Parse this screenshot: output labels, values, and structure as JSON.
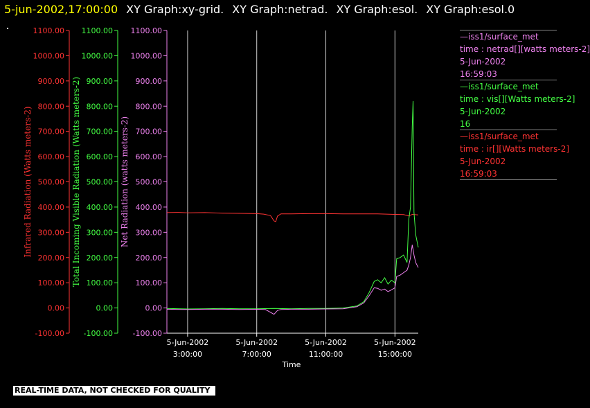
{
  "title": {
    "datetime": "5-jun-2002,17:00:00",
    "graphs": [
      "XY Graph:xy-grid.",
      "XY Graph:netrad.",
      "XY Graph:esol.",
      "XY Graph:esol.0"
    ]
  },
  "legend": [
    {
      "lines": [
        "—iss1/surface_met",
        "time : netrad[][watts meters-2]",
        "5-Jun-2002",
        "16:59:03"
      ],
      "color": "#ee82ee"
    },
    {
      "lines": [
        "—iss1/surface_met",
        "time : vis[][Watts meters-2]",
        "5-Jun-2002",
        "16"
      ],
      "color": "#44ff44"
    },
    {
      "lines": [
        "—iss1/surface_met",
        "time : ir[][Watts meters-2]",
        "5-Jun-2002",
        "16:59:03"
      ],
      "color": "#ff3333"
    }
  ],
  "quality_note": "REAL-TIME DATA, NOT CHECKED FOR QUALITY",
  "chart_data": {
    "type": "line",
    "xlabel": "Time",
    "x_ticks": [
      {
        "t": 3,
        "date": "5-Jun-2002",
        "time": "3:00:00"
      },
      {
        "t": 7,
        "date": "5-Jun-2002",
        "time": "7:00:00"
      },
      {
        "t": 11,
        "date": "5-Jun-2002",
        "time": "11:00:00"
      },
      {
        "t": 15,
        "date": "5-Jun-2002",
        "time": "15:00:00"
      }
    ],
    "xlim": [
      1.8,
      16.35
    ],
    "grid": "vertical lines at x ticks",
    "axes": [
      {
        "id": "ir",
        "label": "Infrared Radiation (Watts meters-2)",
        "color": "#ff3333",
        "ylim": [
          -100,
          1100
        ],
        "ticks": [
          "-100.00",
          "0.00",
          "100.00",
          "200.00",
          "300.00",
          "400.00",
          "500.00",
          "600.00",
          "700.00",
          "800.00",
          "900.00",
          "1000.00",
          "1100.00"
        ]
      },
      {
        "id": "vis",
        "label": "Total Incoming Visible Radiation (Watts meters-2)",
        "color": "#44ff44",
        "ylim": [
          -100,
          1100
        ],
        "ticks": [
          "-100.00",
          "0.00",
          "100.00",
          "200.00",
          "300.00",
          "400.00",
          "500.00",
          "600.00",
          "700.00",
          "800.00",
          "900.00",
          "1000.00",
          "1100.00"
        ]
      },
      {
        "id": "net",
        "label": "Net Radiation (watts meters-2)",
        "color": "#ee82ee",
        "ylim": [
          -100,
          1100
        ],
        "ticks": [
          "-100.00",
          "0.00",
          "100.00",
          "200.00",
          "300.00",
          "400.00",
          "500.00",
          "600.00",
          "700.00",
          "800.00",
          "900.00",
          "1000.00",
          "1100.00"
        ]
      }
    ],
    "series": [
      {
        "name": "ir",
        "color": "#ff3333",
        "points": [
          [
            1.8,
            378
          ],
          [
            2.5,
            379
          ],
          [
            3,
            377
          ],
          [
            4,
            378
          ],
          [
            5,
            376
          ],
          [
            6,
            375
          ],
          [
            7,
            374
          ],
          [
            7.4,
            372
          ],
          [
            7.8,
            366
          ],
          [
            8.0,
            345
          ],
          [
            8.1,
            342
          ],
          [
            8.2,
            364
          ],
          [
            8.4,
            373
          ],
          [
            9,
            373
          ],
          [
            10,
            374
          ],
          [
            11,
            374
          ],
          [
            12,
            373
          ],
          [
            13,
            373
          ],
          [
            14,
            373
          ],
          [
            14.5,
            372
          ],
          [
            15,
            371
          ],
          [
            15.5,
            370
          ],
          [
            15.8,
            365
          ],
          [
            16,
            371
          ],
          [
            16.35,
            369
          ]
        ]
      },
      {
        "name": "vis",
        "color": "#44ff44",
        "points": [
          [
            1.8,
            -2
          ],
          [
            3,
            -4
          ],
          [
            4,
            -3
          ],
          [
            5,
            -2
          ],
          [
            6,
            -3
          ],
          [
            7,
            -3
          ],
          [
            8,
            -2
          ],
          [
            9,
            -3
          ],
          [
            10,
            -2
          ],
          [
            11,
            -2
          ],
          [
            12,
            0
          ],
          [
            12.8,
            8
          ],
          [
            13.2,
            25
          ],
          [
            13.5,
            60
          ],
          [
            13.8,
            105
          ],
          [
            14.0,
            112
          ],
          [
            14.2,
            100
          ],
          [
            14.4,
            120
          ],
          [
            14.6,
            95
          ],
          [
            14.8,
            110
          ],
          [
            15.0,
            100
          ],
          [
            15.1,
            195
          ],
          [
            15.3,
            200
          ],
          [
            15.5,
            210
          ],
          [
            15.7,
            180
          ],
          [
            15.8,
            350
          ],
          [
            15.9,
            400
          ],
          [
            16.0,
            720
          ],
          [
            16.05,
            820
          ],
          [
            16.1,
            380
          ],
          [
            16.2,
            290
          ],
          [
            16.35,
            240
          ]
        ]
      },
      {
        "name": "net",
        "color": "#ee82ee",
        "points": [
          [
            1.8,
            -5
          ],
          [
            3,
            -6
          ],
          [
            4,
            -5
          ],
          [
            5,
            -5
          ],
          [
            6,
            -6
          ],
          [
            7,
            -5
          ],
          [
            7.5,
            -6
          ],
          [
            8.0,
            -25
          ],
          [
            8.2,
            -10
          ],
          [
            8.4,
            -6
          ],
          [
            9,
            -5
          ],
          [
            10,
            -5
          ],
          [
            11,
            -4
          ],
          [
            12,
            -3
          ],
          [
            12.8,
            5
          ],
          [
            13.2,
            20
          ],
          [
            13.5,
            48
          ],
          [
            13.8,
            80
          ],
          [
            14.0,
            78
          ],
          [
            14.2,
            70
          ],
          [
            14.4,
            75
          ],
          [
            14.6,
            65
          ],
          [
            14.8,
            72
          ],
          [
            15.0,
            80
          ],
          [
            15.1,
            125
          ],
          [
            15.3,
            130
          ],
          [
            15.5,
            140
          ],
          [
            15.7,
            150
          ],
          [
            15.8,
            170
          ],
          [
            15.9,
            200
          ],
          [
            16.0,
            250
          ],
          [
            16.1,
            210
          ],
          [
            16.2,
            180
          ],
          [
            16.35,
            160
          ]
        ]
      }
    ]
  }
}
